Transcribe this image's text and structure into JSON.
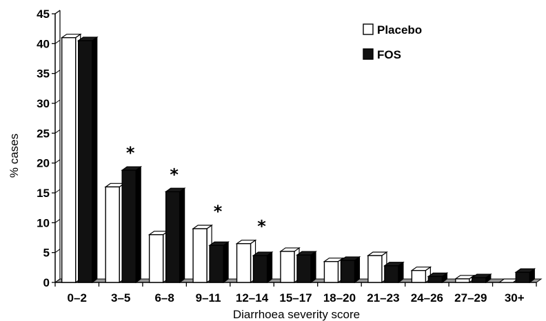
{
  "chart_data": {
    "type": "bar",
    "style": "3d-clustered",
    "categories": [
      "0–2",
      "3–5",
      "6–8",
      "9–11",
      "12–14",
      "15–17",
      "18–20",
      "21–23",
      "24–26",
      "27–29",
      "30+"
    ],
    "series": [
      {
        "name": "Placebo",
        "color": "#ffffff",
        "values": [
          41,
          16,
          8,
          9,
          6.5,
          5.2,
          3.5,
          4.5,
          2,
          0.6,
          0
        ]
      },
      {
        "name": "FOS",
        "color": "#111111",
        "values": [
          40.5,
          18.8,
          15.2,
          6.2,
          4.5,
          4.6,
          3.7,
          2.8,
          1,
          0.8,
          1.7
        ]
      }
    ],
    "significance_marker": "*",
    "significant_categories": [
      "3–5",
      "6–8",
      "9–11",
      "12–14"
    ],
    "xlabel": "Diarrhoea severity score",
    "ylabel": "% cases",
    "ylim": [
      0,
      45
    ],
    "yticks": [
      "0",
      "5",
      "10",
      "15",
      "20",
      "25",
      "30",
      "35",
      "40",
      "45"
    ],
    "legend_position": "top-right",
    "grid": false
  }
}
